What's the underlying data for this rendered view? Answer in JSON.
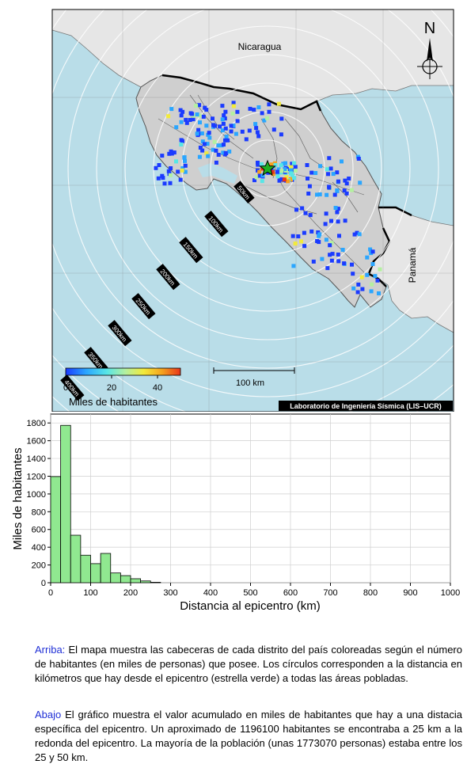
{
  "map": {
    "country_labels": [
      "Nicaragua",
      "Panamá"
    ],
    "north_label": "N",
    "ring_labels": [
      "50km",
      "100km",
      "150km",
      "200km",
      "250km",
      "300km",
      "350km",
      "400km"
    ],
    "scale_bar_label": "100 km",
    "colorbar": {
      "title": "Miles de habitantes",
      "ticks": [
        "0",
        "20",
        "40"
      ],
      "min": 0,
      "max": 50,
      "colors": [
        "#1b3bff",
        "#2aa6ff",
        "#58e6e6",
        "#b4f0a0",
        "#f2ea3a",
        "#f5a21e",
        "#e8351c"
      ]
    },
    "credit": "Laboratorio de Ingeniería Sísmica (LIS–UCR)",
    "colors": {
      "ocean": "#b9dde8",
      "land_cr": "#cfcfcf",
      "land_other": "#e6e6e6",
      "epicenter": "#1fae1f"
    }
  },
  "chart_data": {
    "type": "bar",
    "xlabel": "Distancia al epicentro (km)",
    "ylabel": "Miles de habitantes",
    "xlim": [
      0,
      1000
    ],
    "ylim": [
      0,
      1900
    ],
    "x_ticks": [
      0,
      100,
      200,
      300,
      400,
      500,
      600,
      700,
      800,
      900,
      1000
    ],
    "y_ticks": [
      0,
      200,
      400,
      600,
      800,
      1000,
      1200,
      1400,
      1600,
      1800
    ],
    "bin_width": 25,
    "bins": [
      0,
      25,
      50,
      75,
      100,
      125,
      150,
      175,
      200,
      225,
      250
    ],
    "values": [
      1196.1,
      1773.07,
      535,
      310,
      215,
      330,
      110,
      80,
      45,
      20,
      5
    ],
    "bar_color": "#90e890",
    "grid": true
  },
  "captions": {
    "top_head": "Arriba:",
    "top_text": " El mapa muestra las cabeceras de cada distrito del país coloreadas según el número de habitantes (en miles de personas) que posee.  Los círculos corresponden a la distancia en kilómetros que hay desde el epicentro (estrella verde) a todas las áreas pobladas.",
    "bottom_head": "Abajo",
    "bottom_text": " El gráfico muestra el valor acumulado en miles de habitantes que hay a una distacia específica del epicentro.  Un aproximado de 1196100 habitantes se encontraba a 25 km a la redonda del epicentro.  La mayoría de la población (unas 1773070 personas) estaba entre los 25 y 50 km."
  }
}
